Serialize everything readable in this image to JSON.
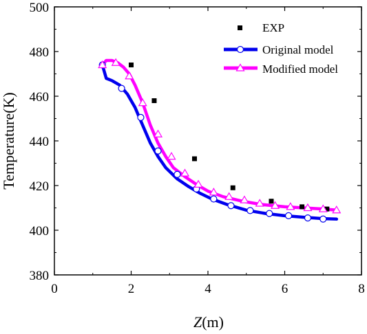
{
  "chart_data": {
    "type": "line",
    "xlabel_italic": "Z",
    "xlabel_rest": "(m)",
    "ylabel": "Temperature(K)",
    "xlim": [
      0,
      8
    ],
    "ylim": [
      380,
      500
    ],
    "xticks": [
      0,
      2,
      4,
      6,
      8
    ],
    "yticks": [
      380,
      400,
      420,
      440,
      460,
      480,
      500
    ],
    "grid": false,
    "legend_position": "top-right",
    "series": [
      {
        "name": "EXP",
        "style": "scatter",
        "marker": "square",
        "color": "#000000",
        "x": [
          2.0,
          2.6,
          3.65,
          4.65,
          5.65,
          6.45,
          7.1
        ],
        "y": [
          474,
          458,
          432,
          419,
          413,
          410.5,
          409.5
        ]
      },
      {
        "name": "Original model",
        "style": "line",
        "marker": "circle",
        "color": "#0000ee",
        "x": [
          1.25,
          1.35,
          1.5,
          1.7,
          1.9,
          2.1,
          2.3,
          2.5,
          2.7,
          2.9,
          3.2,
          3.5,
          3.8,
          4.1,
          4.5,
          5.0,
          5.5,
          6.0,
          6.5,
          7.0,
          7.35
        ],
        "y": [
          474,
          468,
          467,
          465,
          461,
          455,
          447,
          439,
          433,
          428,
          423,
          419.5,
          416.5,
          414,
          411.5,
          409,
          407.5,
          406.5,
          405.8,
          405.2,
          405
        ],
        "marker_x": [
          1.25,
          1.75,
          2.25,
          2.7,
          3.2,
          3.7,
          4.15,
          4.6,
          5.1,
          5.6,
          6.1,
          6.6,
          7.0
        ],
        "marker_y": [
          474,
          463.5,
          450.5,
          435.5,
          425,
          418.5,
          414,
          411,
          408.8,
          407.5,
          406.5,
          405.5,
          405
        ]
      },
      {
        "name": "Modified model",
        "style": "line",
        "marker": "triangle",
        "color": "#ff00ff",
        "x": [
          1.25,
          1.35,
          1.5,
          1.65,
          1.8,
          1.95,
          2.1,
          2.3,
          2.5,
          2.7,
          2.9,
          3.1,
          3.4,
          3.7,
          4.0,
          4.4,
          4.9,
          5.4,
          6.0,
          6.5,
          7.0,
          7.35
        ],
        "y": [
          474,
          476,
          476,
          475,
          473,
          470,
          465,
          457,
          447,
          439,
          433,
          428,
          424,
          420.5,
          417.5,
          415,
          413,
          411.5,
          410.5,
          410,
          409.5,
          409
        ],
        "marker_x": [
          1.25,
          1.6,
          1.95,
          2.3,
          2.7,
          3.05,
          3.4,
          3.75,
          4.15,
          4.55,
          4.95,
          5.35,
          5.75,
          6.15,
          6.6,
          7.0,
          7.35
        ],
        "marker_y": [
          474,
          475,
          469,
          457,
          443,
          433,
          425.5,
          420.5,
          417,
          415,
          413.5,
          412,
          411,
          410.5,
          410,
          409.5,
          409
        ]
      }
    ]
  }
}
